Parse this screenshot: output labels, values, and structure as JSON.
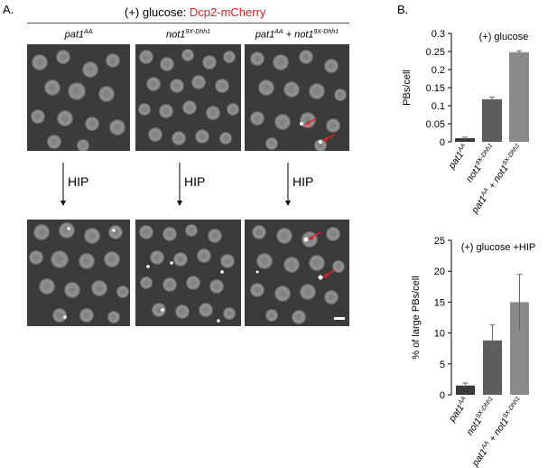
{
  "panelA": {
    "letter": "A.",
    "title_prefix": "(+) glucose: ",
    "title_reporter": "Dcp2-mCherry",
    "columns": [
      {
        "name": "pat1",
        "sup": "AA",
        "suffix": "",
        "suffix_sup": ""
      },
      {
        "name": "not1",
        "sup": "9X-Dhh1",
        "suffix": "",
        "suffix_sup": ""
      },
      {
        "name": "pat1",
        "sup": "AA",
        "suffix": " + not1",
        "suffix_sup": "9X-Dhh1"
      }
    ],
    "treatment_label": "HIP",
    "colors": {
      "reporter_text": "#e0222a",
      "arrow_red": "#e0222a",
      "image_bg": "#3a3a3a"
    }
  },
  "panelB": {
    "letter": "B.",
    "chart_data": [
      {
        "type": "bar",
        "title": "(+) glucose",
        "ylabel": "PBs/cell",
        "xlabel": "",
        "ylim": [
          0,
          0.3
        ],
        "yticks": [
          0,
          0.05,
          0.1,
          0.15,
          0.2,
          0.25,
          0.3
        ],
        "ytick_labels": [
          "0",
          "0.05",
          "0.1",
          "0.15",
          "0.2",
          "0.25",
          "0.3"
        ],
        "categories": [
          "pat1AA",
          "not19X-Dhh1",
          "pat1AA + not19X-Dhh1"
        ],
        "values": [
          0.01,
          0.118,
          0.248
        ],
        "errors": [
          0.003,
          0.006,
          0.004
        ],
        "bar_colors": [
          "#3a3a3a",
          "#5d5d5d",
          "#8a8a8a"
        ],
        "grid": false
      },
      {
        "type": "bar",
        "title": "(+) glucose +HIP",
        "ylabel": "% of large PBs/cell",
        "xlabel": "",
        "ylim": [
          0,
          25
        ],
        "yticks": [
          0,
          5,
          10,
          15,
          20,
          25
        ],
        "ytick_labels": [
          "0",
          "5",
          "10",
          "15",
          "20",
          "25"
        ],
        "categories": [
          "pat1AA",
          "not19X-Dhh1",
          "pat1AA + not19X-Dhh1"
        ],
        "values": [
          1.5,
          8.8,
          15.0
        ],
        "errors": [
          0.4,
          2.5,
          4.5
        ],
        "bar_colors": [
          "#3a3a3a",
          "#5d5d5d",
          "#8a8a8a"
        ],
        "grid": false
      }
    ],
    "category_labels": [
      {
        "name": "pat1",
        "sup": "AA",
        "suffix": "",
        "suffix_sup": ""
      },
      {
        "name": "not1",
        "sup": "9X-Dhh1",
        "suffix": "",
        "suffix_sup": ""
      },
      {
        "name": "pat1",
        "sup": "AA",
        "suffix": " + not1",
        "suffix_sup": "9X-Dhh1"
      }
    ]
  }
}
